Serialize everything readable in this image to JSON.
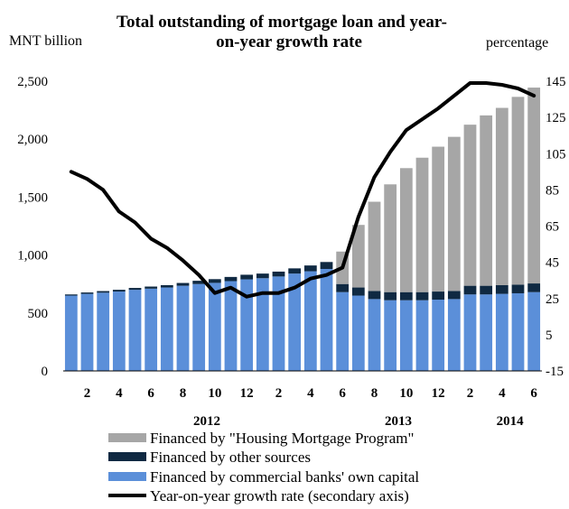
{
  "chart_data": {
    "type": "bar",
    "title_line1": "Total outstanding of mortgage loan and year-",
    "title_line2": "on-year growth rate",
    "ylabel_left": "MNT billion",
    "ylabel_right": "percentage",
    "ylim_left": [
      0,
      2500
    ],
    "yticks_left": [
      "0",
      "500",
      "1,000",
      "1,500",
      "2,000",
      "2,500"
    ],
    "ylim_right": [
      -15,
      145
    ],
    "yticks_right": [
      "-15",
      "5",
      "25",
      "45",
      "65",
      "85",
      "105",
      "125",
      "145"
    ],
    "stacked": true,
    "months": [
      "1",
      "2",
      "3",
      "4",
      "5",
      "6",
      "7",
      "8",
      "9",
      "10",
      "11",
      "12",
      "1",
      "2",
      "3",
      "4",
      "5",
      "6",
      "7",
      "8",
      "9",
      "10",
      "11",
      "12",
      "1",
      "2",
      "3",
      "4",
      "5",
      "6"
    ],
    "xtick_labels": [
      {
        "index": 1,
        "label": "2"
      },
      {
        "index": 3,
        "label": "4"
      },
      {
        "index": 5,
        "label": "6"
      },
      {
        "index": 7,
        "label": "8"
      },
      {
        "index": 9,
        "label": "10"
      },
      {
        "index": 11,
        "label": "12"
      },
      {
        "index": 13,
        "label": "2"
      },
      {
        "index": 15,
        "label": "4"
      },
      {
        "index": 17,
        "label": "6"
      },
      {
        "index": 19,
        "label": "8"
      },
      {
        "index": 21,
        "label": "10"
      },
      {
        "index": 23,
        "label": "12"
      },
      {
        "index": 25,
        "label": "2"
      },
      {
        "index": 27,
        "label": "4"
      },
      {
        "index": 29,
        "label": "6"
      }
    ],
    "years": [
      {
        "label": "2012",
        "index": 8.5
      },
      {
        "label": "2013",
        "index": 20.5
      },
      {
        "label": "2014",
        "index": 27.5
      }
    ],
    "series": [
      {
        "name": "Financed by commercial banks' own capital",
        "color": "#5b8fd9",
        "values": [
          650,
          665,
          675,
          685,
          700,
          710,
          720,
          735,
          750,
          760,
          775,
          790,
          800,
          815,
          840,
          860,
          880,
          680,
          650,
          620,
          610,
          610,
          610,
          615,
          620,
          660,
          660,
          665,
          670,
          680
        ]
      },
      {
        "name": "Financed by other sources",
        "color": "#0f2942",
        "values": [
          10,
          12,
          14,
          15,
          16,
          18,
          20,
          24,
          28,
          32,
          36,
          40,
          40,
          42,
          45,
          50,
          60,
          70,
          70,
          70,
          70,
          70,
          70,
          70,
          70,
          75,
          75,
          75,
          75,
          75
        ]
      },
      {
        "name": "Financed by \"Housing Mortgage Program\"",
        "color": "#a6a6a6",
        "values": [
          0,
          0,
          0,
          0,
          0,
          0,
          0,
          0,
          0,
          0,
          0,
          0,
          0,
          0,
          0,
          0,
          0,
          280,
          540,
          770,
          930,
          1070,
          1160,
          1250,
          1330,
          1390,
          1470,
          1530,
          1620,
          1690
        ]
      }
    ],
    "line": {
      "name": "Year-on-year growth rate (secondary axis)",
      "color": "#000000",
      "values": [
        95,
        91,
        85,
        73,
        67,
        58,
        53,
        46,
        38,
        28,
        31,
        26,
        28,
        28,
        31,
        36,
        38,
        42,
        70,
        92,
        106,
        118,
        124,
        130,
        137,
        144,
        144,
        143,
        141,
        137
      ]
    }
  }
}
